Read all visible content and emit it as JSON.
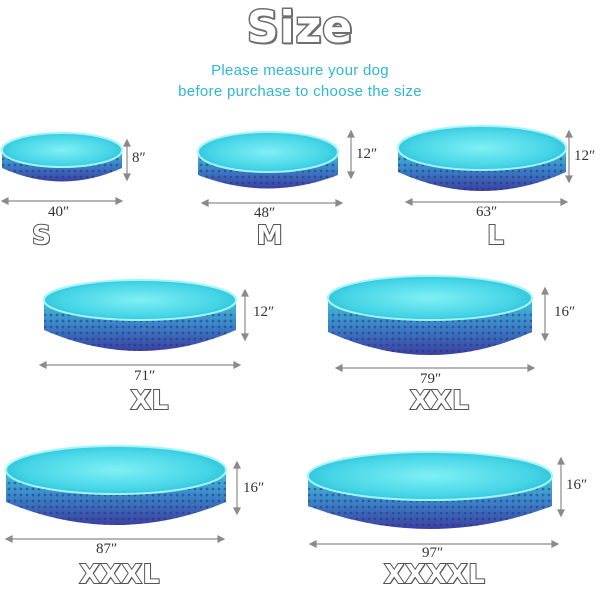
{
  "title": "Size",
  "subtitle_line1": "Please measure your dog",
  "subtitle_line2": "before purchase to choose the size",
  "colors": {
    "water_top": "#62e3ef",
    "water_deep": "#1fb5cf",
    "wall_top": "#3fc4d6",
    "wall_bottom": "#3b3fa0",
    "title_stroke": "#6f6f6f",
    "subtitle": "#2bb8d4"
  },
  "sizes": [
    {
      "label": "S",
      "diameter": "40″",
      "height": "8″"
    },
    {
      "label": "M",
      "diameter": "48″",
      "height": "12″"
    },
    {
      "label": "L",
      "diameter": "63″",
      "height": "12″"
    },
    {
      "label": "XL",
      "diameter": "71″",
      "height": "12″"
    },
    {
      "label": "XXL",
      "diameter": "79″",
      "height": "16″"
    },
    {
      "label": "XXXL",
      "diameter": "87″",
      "height": "16″"
    },
    {
      "label": "XXXXL",
      "diameter": "97″",
      "height": "16″"
    }
  ]
}
